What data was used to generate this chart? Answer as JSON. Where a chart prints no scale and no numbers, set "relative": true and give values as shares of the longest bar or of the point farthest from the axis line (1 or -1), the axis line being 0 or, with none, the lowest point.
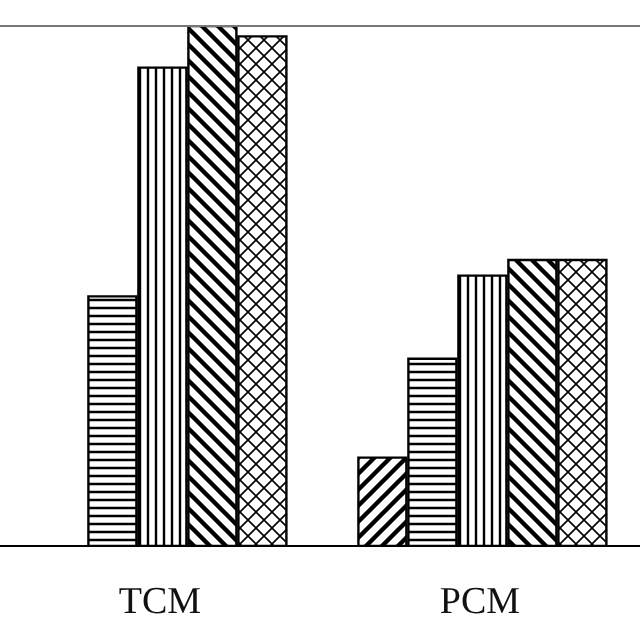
{
  "chart_data": {
    "type": "bar",
    "relative": true,
    "categories": [
      "TCM",
      "PCM"
    ],
    "series": [
      {
        "color": "#000000",
        "values": [
          null,
          0.17
        ]
      },
      {
        "color": "#000000",
        "values": [
          0.48,
          0.36
        ]
      },
      {
        "color": "#000000",
        "values": [
          0.92,
          0.52
        ]
      },
      {
        "color": "#000000",
        "values": [
          1,
          0.55
        ]
      },
      {
        "color": "#000000",
        "values": [
          0.98,
          0.55
        ]
      }
    ]
  }
}
